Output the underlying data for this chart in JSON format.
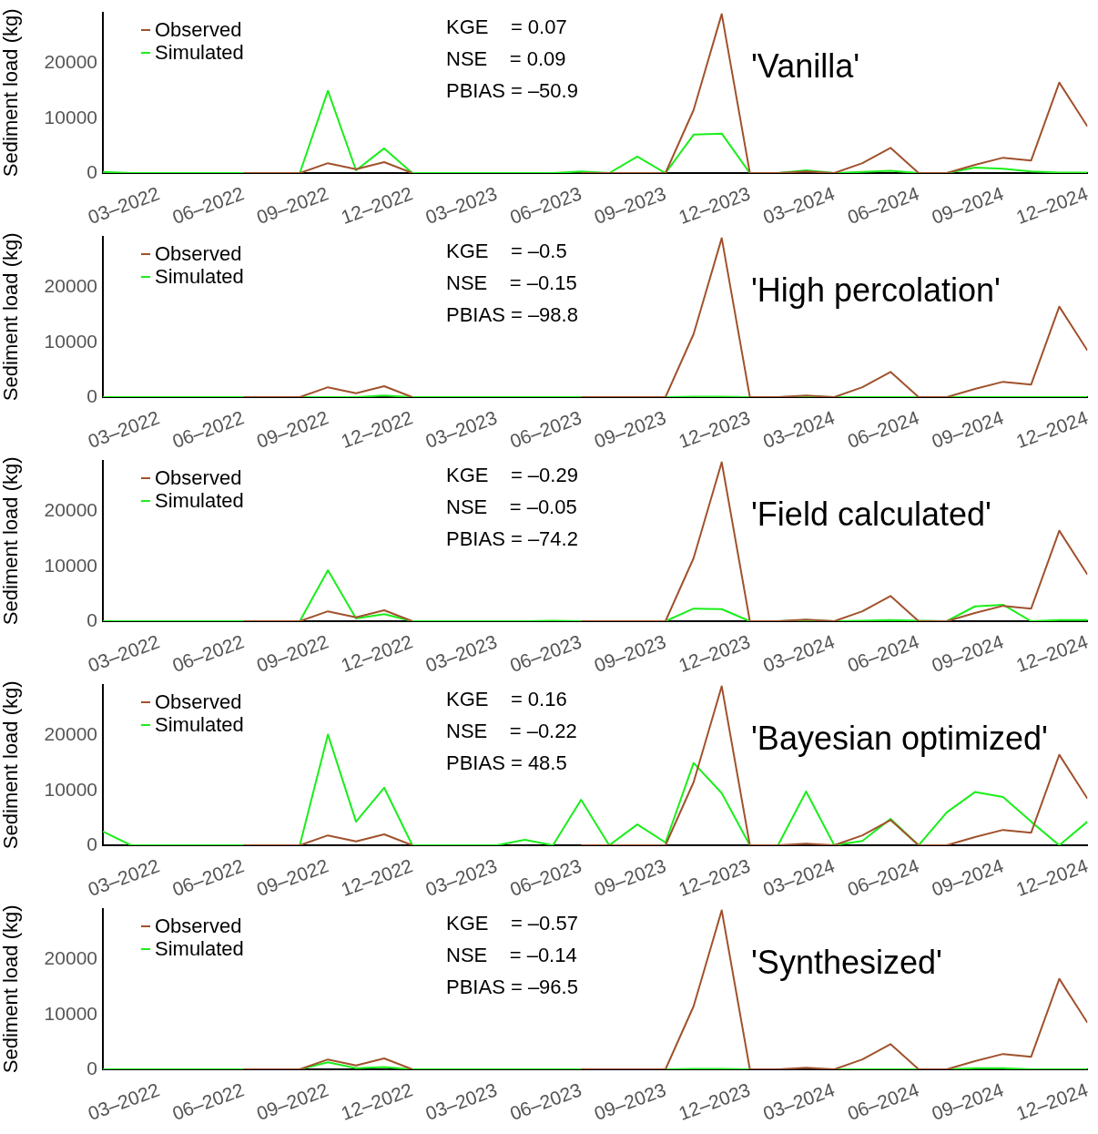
{
  "chart_data": [
    {
      "type": "line",
      "title": "'Vanilla'",
      "ylabel": "Sediment load (kg)",
      "annotations": [
        "KGE    = 0.07",
        "NSE    = 0.09",
        "PBIAS = –50.9"
      ],
      "x": [
        "2022-01",
        "2022-02",
        "2022-03",
        "2022-04",
        "2022-05",
        "2022-06",
        "2022-07",
        "2022-08",
        "2022-09",
        "2022-10",
        "2022-11",
        "2022-12",
        "2023-01",
        "2023-02",
        "2023-03",
        "2023-04",
        "2023-05",
        "2023-06",
        "2023-07",
        "2023-08",
        "2023-09",
        "2023-10",
        "2023-11",
        "2023-12",
        "2024-01",
        "2024-02",
        "2024-03",
        "2024-04",
        "2024-05",
        "2024-06",
        "2024-07",
        "2024-08",
        "2024-09",
        "2024-10",
        "2024-11",
        "2024-12"
      ],
      "xlim": [
        "2022-01",
        "2024-12"
      ],
      "xticks": [
        {
          "value": "2022-03",
          "label": "03–2022"
        },
        {
          "value": "2022-06",
          "label": "06–2022"
        },
        {
          "value": "2022-09",
          "label": "09–2022"
        },
        {
          "value": "2022-12",
          "label": "12–2022"
        },
        {
          "value": "2023-03",
          "label": "03–2023"
        },
        {
          "value": "2023-06",
          "label": "06–2023"
        },
        {
          "value": "2023-09",
          "label": "09–2023"
        },
        {
          "value": "2023-12",
          "label": "12–2023"
        },
        {
          "value": "2024-03",
          "label": "03–2024"
        },
        {
          "value": "2024-06",
          "label": "06–2024"
        },
        {
          "value": "2024-09",
          "label": "09–2024"
        },
        {
          "value": "2024-12",
          "label": "12–2024"
        }
      ],
      "ylim": [
        0,
        29300
      ],
      "yticks": [
        0,
        10000,
        20000
      ],
      "grid": false,
      "legend": "top left",
      "marker": "none",
      "line_style": "solid",
      "series": [
        {
          "name": "Observed",
          "color": "#a0522d",
          "values": [
            null,
            null,
            null,
            null,
            null,
            0,
            0,
            0,
            1800,
            700,
            2000,
            0,
            null,
            null,
            null,
            null,
            null,
            0,
            0,
            0,
            0,
            11500,
            29000,
            0,
            0,
            300,
            0,
            1800,
            4600,
            0,
            0,
            1500,
            2800,
            2300,
            16500,
            8500
          ]
        },
        {
          "name": "Simulated",
          "color": "#1aee1a",
          "values": [
            200,
            0,
            0,
            0,
            0,
            0,
            0,
            0,
            15000,
            500,
            4500,
            0,
            0,
            0,
            0,
            0,
            0,
            300,
            0,
            3000,
            0,
            7000,
            7200,
            0,
            0,
            500,
            0,
            200,
            400,
            0,
            0,
            1000,
            800,
            300,
            100,
            100
          ]
        }
      ]
    },
    {
      "type": "line",
      "title": "'High percolation'",
      "ylabel": "Sediment load (kg)",
      "annotations": [
        "KGE    = –0.5",
        "NSE    = –0.15",
        "PBIAS = –98.8"
      ],
      "x": [
        "2022-01",
        "2022-02",
        "2022-03",
        "2022-04",
        "2022-05",
        "2022-06",
        "2022-07",
        "2022-08",
        "2022-09",
        "2022-10",
        "2022-11",
        "2022-12",
        "2023-01",
        "2023-02",
        "2023-03",
        "2023-04",
        "2023-05",
        "2023-06",
        "2023-07",
        "2023-08",
        "2023-09",
        "2023-10",
        "2023-11",
        "2023-12",
        "2024-01",
        "2024-02",
        "2024-03",
        "2024-04",
        "2024-05",
        "2024-06",
        "2024-07",
        "2024-08",
        "2024-09",
        "2024-10",
        "2024-11",
        "2024-12"
      ],
      "xlim": [
        "2022-01",
        "2024-12"
      ],
      "xticks": [
        {
          "value": "2022-03",
          "label": "03–2022"
        },
        {
          "value": "2022-06",
          "label": "06–2022"
        },
        {
          "value": "2022-09",
          "label": "09–2022"
        },
        {
          "value": "2022-12",
          "label": "12–2022"
        },
        {
          "value": "2023-03",
          "label": "03–2023"
        },
        {
          "value": "2023-06",
          "label": "06–2023"
        },
        {
          "value": "2023-09",
          "label": "09–2023"
        },
        {
          "value": "2023-12",
          "label": "12–2023"
        },
        {
          "value": "2024-03",
          "label": "03–2024"
        },
        {
          "value": "2024-06",
          "label": "06–2024"
        },
        {
          "value": "2024-09",
          "label": "09–2024"
        },
        {
          "value": "2024-12",
          "label": "12–2024"
        }
      ],
      "ylim": [
        0,
        29300
      ],
      "yticks": [
        0,
        10000,
        20000
      ],
      "grid": false,
      "legend": "top left",
      "marker": "none",
      "line_style": "solid",
      "series": [
        {
          "name": "Observed",
          "color": "#a0522d",
          "values": [
            null,
            null,
            null,
            null,
            null,
            0,
            0,
            0,
            1800,
            700,
            2000,
            0,
            null,
            null,
            null,
            null,
            null,
            0,
            0,
            0,
            0,
            11500,
            29000,
            0,
            0,
            300,
            0,
            1800,
            4600,
            0,
            0,
            1500,
            2800,
            2300,
            16500,
            8500
          ]
        },
        {
          "name": "Simulated",
          "color": "#1aee1a",
          "values": [
            0,
            0,
            0,
            0,
            0,
            0,
            0,
            0,
            0,
            0,
            300,
            0,
            0,
            0,
            0,
            0,
            0,
            0,
            0,
            0,
            0,
            100,
            100,
            0,
            0,
            100,
            0,
            0,
            0,
            0,
            0,
            0,
            0,
            0,
            0,
            0
          ]
        }
      ]
    },
    {
      "type": "line",
      "title": "'Field calculated'",
      "ylabel": "Sediment load (kg)",
      "annotations": [
        "KGE    = –0.29",
        "NSE    = –0.05",
        "PBIAS = –74.2"
      ],
      "x": [
        "2022-01",
        "2022-02",
        "2022-03",
        "2022-04",
        "2022-05",
        "2022-06",
        "2022-07",
        "2022-08",
        "2022-09",
        "2022-10",
        "2022-11",
        "2022-12",
        "2023-01",
        "2023-02",
        "2023-03",
        "2023-04",
        "2023-05",
        "2023-06",
        "2023-07",
        "2023-08",
        "2023-09",
        "2023-10",
        "2023-11",
        "2023-12",
        "2024-01",
        "2024-02",
        "2024-03",
        "2024-04",
        "2024-05",
        "2024-06",
        "2024-07",
        "2024-08",
        "2024-09",
        "2024-10",
        "2024-11",
        "2024-12"
      ],
      "xlim": [
        "2022-01",
        "2024-12"
      ],
      "xticks": [
        {
          "value": "2022-03",
          "label": "03–2022"
        },
        {
          "value": "2022-06",
          "label": "06–2022"
        },
        {
          "value": "2022-09",
          "label": "09–2022"
        },
        {
          "value": "2022-12",
          "label": "12–2022"
        },
        {
          "value": "2023-03",
          "label": "03–2023"
        },
        {
          "value": "2023-06",
          "label": "06–2023"
        },
        {
          "value": "2023-09",
          "label": "09–2023"
        },
        {
          "value": "2023-12",
          "label": "12–2023"
        },
        {
          "value": "2024-03",
          "label": "03–2024"
        },
        {
          "value": "2024-06",
          "label": "06–2024"
        },
        {
          "value": "2024-09",
          "label": "09–2024"
        },
        {
          "value": "2024-12",
          "label": "12–2024"
        }
      ],
      "ylim": [
        0,
        29300
      ],
      "yticks": [
        0,
        10000,
        20000
      ],
      "grid": false,
      "legend": "top left",
      "marker": "none",
      "line_style": "solid",
      "series": [
        {
          "name": "Observed",
          "color": "#a0522d",
          "values": [
            null,
            null,
            null,
            null,
            null,
            0,
            0,
            0,
            1800,
            700,
            2000,
            0,
            null,
            null,
            null,
            null,
            null,
            0,
            0,
            0,
            0,
            11500,
            29000,
            0,
            0,
            300,
            0,
            1800,
            4600,
            0,
            0,
            1500,
            2800,
            2300,
            16500,
            8500
          ]
        },
        {
          "name": "Simulated",
          "color": "#1aee1a",
          "values": [
            0,
            0,
            0,
            0,
            0,
            0,
            0,
            0,
            9300,
            500,
            1300,
            0,
            0,
            0,
            0,
            0,
            100,
            0,
            0,
            0,
            0,
            2300,
            2200,
            0,
            0,
            200,
            0,
            100,
            200,
            100,
            0,
            2700,
            3000,
            0,
            200,
            200
          ]
        }
      ]
    },
    {
      "type": "line",
      "title": "'Bayesian optimized'",
      "ylabel": "Sediment load (kg)",
      "annotations": [
        "KGE    = 0.16",
        "NSE    = –0.22",
        "PBIAS = 48.5"
      ],
      "x": [
        "2022-01",
        "2022-02",
        "2022-03",
        "2022-04",
        "2022-05",
        "2022-06",
        "2022-07",
        "2022-08",
        "2022-09",
        "2022-10",
        "2022-11",
        "2022-12",
        "2023-01",
        "2023-02",
        "2023-03",
        "2023-04",
        "2023-05",
        "2023-06",
        "2023-07",
        "2023-08",
        "2023-09",
        "2023-10",
        "2023-11",
        "2023-12",
        "2024-01",
        "2024-02",
        "2024-03",
        "2024-04",
        "2024-05",
        "2024-06",
        "2024-07",
        "2024-08",
        "2024-09",
        "2024-10",
        "2024-11",
        "2024-12"
      ],
      "xlim": [
        "2022-01",
        "2024-12"
      ],
      "xticks": [
        {
          "value": "2022-03",
          "label": "03–2022"
        },
        {
          "value": "2022-06",
          "label": "06–2022"
        },
        {
          "value": "2022-09",
          "label": "09–2022"
        },
        {
          "value": "2022-12",
          "label": "12–2022"
        },
        {
          "value": "2023-03",
          "label": "03–2023"
        },
        {
          "value": "2023-06",
          "label": "06–2023"
        },
        {
          "value": "2023-09",
          "label": "09–2023"
        },
        {
          "value": "2023-12",
          "label": "12–2023"
        },
        {
          "value": "2024-03",
          "label": "03–2024"
        },
        {
          "value": "2024-06",
          "label": "06–2024"
        },
        {
          "value": "2024-09",
          "label": "09–2024"
        },
        {
          "value": "2024-12",
          "label": "12–2024"
        }
      ],
      "ylim": [
        0,
        29300
      ],
      "yticks": [
        0,
        10000,
        20000
      ],
      "grid": false,
      "legend": "top left",
      "marker": "none",
      "line_style": "solid",
      "series": [
        {
          "name": "Observed",
          "color": "#a0522d",
          "values": [
            null,
            null,
            null,
            null,
            null,
            0,
            0,
            0,
            1800,
            700,
            2000,
            0,
            null,
            null,
            null,
            null,
            null,
            0,
            0,
            0,
            0,
            11500,
            29000,
            0,
            0,
            300,
            0,
            1800,
            4600,
            0,
            0,
            1500,
            2800,
            2300,
            16500,
            8500
          ]
        },
        {
          "name": "Simulated",
          "color": "#1aee1a",
          "values": [
            2500,
            0,
            0,
            0,
            0,
            0,
            0,
            0,
            20200,
            4300,
            10500,
            0,
            0,
            0,
            0,
            1000,
            0,
            8300,
            0,
            3800,
            500,
            15000,
            9500,
            0,
            0,
            9800,
            0,
            800,
            4800,
            0,
            6000,
            9700,
            8800,
            4300,
            0,
            4300
          ]
        }
      ]
    },
    {
      "type": "line",
      "title": "'Synthesized'",
      "ylabel": "Sediment load (kg)",
      "annotations": [
        "KGE    = –0.57",
        "NSE    = –0.14",
        "PBIAS = –96.5"
      ],
      "x": [
        "2022-01",
        "2022-02",
        "2022-03",
        "2022-04",
        "2022-05",
        "2022-06",
        "2022-07",
        "2022-08",
        "2022-09",
        "2022-10",
        "2022-11",
        "2022-12",
        "2023-01",
        "2023-02",
        "2023-03",
        "2023-04",
        "2023-05",
        "2023-06",
        "2023-07",
        "2023-08",
        "2023-09",
        "2023-10",
        "2023-11",
        "2023-12",
        "2024-01",
        "2024-02",
        "2024-03",
        "2024-04",
        "2024-05",
        "2024-06",
        "2024-07",
        "2024-08",
        "2024-09",
        "2024-10",
        "2024-11",
        "2024-12"
      ],
      "xlim": [
        "2022-01",
        "2024-12"
      ],
      "xticks": [
        {
          "value": "2022-03",
          "label": "03–2022"
        },
        {
          "value": "2022-06",
          "label": "06–2022"
        },
        {
          "value": "2022-09",
          "label": "09–2022"
        },
        {
          "value": "2022-12",
          "label": "12–2022"
        },
        {
          "value": "2023-03",
          "label": "03–2023"
        },
        {
          "value": "2023-06",
          "label": "06–2023"
        },
        {
          "value": "2023-09",
          "label": "09–2023"
        },
        {
          "value": "2023-12",
          "label": "12–2023"
        },
        {
          "value": "2024-03",
          "label": "03–2024"
        },
        {
          "value": "2024-06",
          "label": "06–2024"
        },
        {
          "value": "2024-09",
          "label": "09–2024"
        },
        {
          "value": "2024-12",
          "label": "12–2024"
        }
      ],
      "ylim": [
        0,
        29300
      ],
      "yticks": [
        0,
        10000,
        20000
      ],
      "grid": false,
      "legend": "top left",
      "marker": "none",
      "line_style": "solid",
      "series": [
        {
          "name": "Observed",
          "color": "#a0522d",
          "values": [
            null,
            null,
            null,
            null,
            null,
            0,
            0,
            0,
            1800,
            700,
            2000,
            0,
            null,
            null,
            null,
            null,
            null,
            0,
            0,
            0,
            0,
            11500,
            29000,
            0,
            0,
            300,
            0,
            1800,
            4600,
            0,
            0,
            1500,
            2800,
            2300,
            16500,
            8500
          ]
        },
        {
          "name": "Simulated",
          "color": "#1aee1a",
          "values": [
            0,
            0,
            0,
            0,
            0,
            0,
            0,
            0,
            1300,
            200,
            400,
            0,
            0,
            0,
            0,
            0,
            0,
            0,
            0,
            0,
            0,
            100,
            100,
            0,
            0,
            null,
            0,
            0,
            0,
            0,
            0,
            200,
            200,
            0,
            0,
            0
          ]
        }
      ]
    }
  ]
}
